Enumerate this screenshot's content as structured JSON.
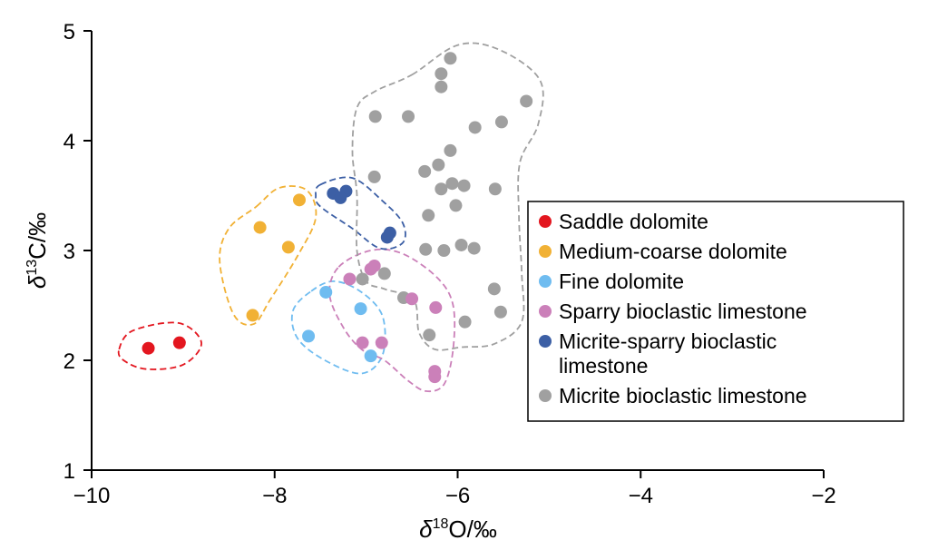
{
  "chart_data": {
    "type": "scatter",
    "xlabel": {
      "prefix": "δ",
      "sup": "18",
      "suffix": "O/‰"
    },
    "ylabel": {
      "prefix": "δ",
      "sup": "13",
      "suffix": "C/‰"
    },
    "xlim": [
      -10,
      -2
    ],
    "ylim": [
      1,
      5
    ],
    "xticks": [
      -10,
      -8,
      -6,
      -4,
      -2
    ],
    "xtick_labels": [
      "−10",
      "−8",
      "−6",
      "−4",
      "−2"
    ],
    "yticks": [
      1,
      2,
      3,
      4,
      5
    ],
    "ytick_labels": [
      "1",
      "2",
      "3",
      "4",
      "5"
    ],
    "grid": false,
    "legend_position": "right",
    "series": [
      {
        "name": "Saddle dolomite",
        "color": "#e3161f",
        "points": [
          [
            -9.38,
            2.11
          ],
          [
            -9.04,
            2.16
          ]
        ]
      },
      {
        "name": "Medium-coarse dolomite",
        "color": "#f1b135",
        "points": [
          [
            -7.73,
            3.46
          ],
          [
            -8.16,
            3.21
          ],
          [
            -7.85,
            3.03
          ],
          [
            -8.24,
            2.41
          ]
        ]
      },
      {
        "name": "Fine dolomite",
        "color": "#6fbcf0",
        "points": [
          [
            -7.44,
            2.62
          ],
          [
            -7.06,
            2.47
          ],
          [
            -7.63,
            2.22
          ],
          [
            -6.95,
            2.04
          ]
        ]
      },
      {
        "name": "Sparry bioclastic limestone",
        "color": "#cb80b9",
        "points": [
          [
            -6.91,
            2.86
          ],
          [
            -6.95,
            2.83
          ],
          [
            -7.18,
            2.74
          ],
          [
            -6.5,
            2.56
          ],
          [
            -6.24,
            2.48
          ],
          [
            -7.04,
            2.16
          ],
          [
            -6.83,
            2.16
          ],
          [
            -6.25,
            1.9
          ],
          [
            -6.25,
            1.85
          ]
        ]
      },
      {
        "name": "Micrite-sparry bioclastic limestone",
        "name_lines": [
          "Micrite-sparry bioclastic",
          "limestone"
        ],
        "color": "#3c5fa5",
        "points": [
          [
            -7.36,
            3.52
          ],
          [
            -7.22,
            3.54
          ],
          [
            -7.28,
            3.48
          ],
          [
            -6.74,
            3.16
          ],
          [
            -6.77,
            3.12
          ]
        ]
      },
      {
        "name": "Micrite bioclastic limestone",
        "color": "#a0a0a0",
        "points": [
          [
            -6.08,
            4.75
          ],
          [
            -6.18,
            4.61
          ],
          [
            -6.18,
            4.49
          ],
          [
            -6.9,
            4.22
          ],
          [
            -6.54,
            4.22
          ],
          [
            -5.25,
            4.36
          ],
          [
            -5.52,
            4.17
          ],
          [
            -5.81,
            4.12
          ],
          [
            -6.08,
            3.91
          ],
          [
            -6.21,
            3.78
          ],
          [
            -6.36,
            3.72
          ],
          [
            -6.91,
            3.67
          ],
          [
            -6.06,
            3.61
          ],
          [
            -5.93,
            3.59
          ],
          [
            -6.18,
            3.56
          ],
          [
            -5.59,
            3.56
          ],
          [
            -6.02,
            3.41
          ],
          [
            -6.32,
            3.32
          ],
          [
            -6.35,
            3.01
          ],
          [
            -6.15,
            3.0
          ],
          [
            -5.96,
            3.05
          ],
          [
            -5.82,
            3.02
          ],
          [
            -6.8,
            2.79
          ],
          [
            -7.04,
            2.74
          ],
          [
            -6.59,
            2.57
          ],
          [
            -5.6,
            2.65
          ],
          [
            -5.53,
            2.44
          ],
          [
            -5.92,
            2.35
          ],
          [
            -6.31,
            2.23
          ]
        ]
      }
    ],
    "hulls": [
      {
        "series": "Saddle dolomite",
        "color": "#e3161f",
        "points": [
          [
            -9.7,
            2.1
          ],
          [
            -9.55,
            2.27
          ],
          [
            -9.05,
            2.34
          ],
          [
            -8.8,
            2.16
          ],
          [
            -9.0,
            1.96
          ],
          [
            -9.4,
            1.92
          ],
          [
            -9.65,
            2.0
          ]
        ]
      },
      {
        "series": "Medium-coarse dolomite",
        "color": "#f1b135",
        "points": [
          [
            -8.2,
            3.4
          ],
          [
            -7.95,
            3.57
          ],
          [
            -7.65,
            3.55
          ],
          [
            -7.55,
            3.3
          ],
          [
            -7.75,
            2.95
          ],
          [
            -8.05,
            2.55
          ],
          [
            -8.23,
            2.33
          ],
          [
            -8.45,
            2.42
          ],
          [
            -8.6,
            2.9
          ],
          [
            -8.5,
            3.2
          ]
        ]
      },
      {
        "series": "Fine dolomite",
        "color": "#6fbcf0",
        "points": [
          [
            -7.6,
            2.63
          ],
          [
            -7.35,
            2.72
          ],
          [
            -7.05,
            2.62
          ],
          [
            -6.82,
            2.4
          ],
          [
            -6.82,
            2.05
          ],
          [
            -7.05,
            1.88
          ],
          [
            -7.45,
            2.0
          ],
          [
            -7.75,
            2.2
          ],
          [
            -7.8,
            2.45
          ]
        ]
      },
      {
        "series": "Sparry bioclastic limestone",
        "color": "#cb80b9",
        "points": [
          [
            -7.3,
            2.85
          ],
          [
            -6.95,
            3.0
          ],
          [
            -6.6,
            2.97
          ],
          [
            -6.22,
            2.75
          ],
          [
            -6.05,
            2.5
          ],
          [
            -6.05,
            2.1
          ],
          [
            -6.15,
            1.78
          ],
          [
            -6.35,
            1.72
          ],
          [
            -6.55,
            1.82
          ],
          [
            -6.8,
            2.0
          ],
          [
            -7.05,
            2.1
          ],
          [
            -7.25,
            2.3
          ],
          [
            -7.4,
            2.6
          ]
        ]
      },
      {
        "series": "Micrite-sparry bioclastic limestone",
        "color": "#3c5fa5",
        "points": [
          [
            -7.5,
            3.6
          ],
          [
            -7.15,
            3.66
          ],
          [
            -6.82,
            3.45
          ],
          [
            -6.6,
            3.25
          ],
          [
            -6.6,
            3.07
          ],
          [
            -6.85,
            3.02
          ],
          [
            -7.15,
            3.2
          ],
          [
            -7.5,
            3.4
          ],
          [
            -7.55,
            3.5
          ]
        ]
      },
      {
        "series": "Micrite bioclastic limestone",
        "color": "#a0a0a0",
        "points": [
          [
            -6.5,
            4.6
          ],
          [
            -6.0,
            4.87
          ],
          [
            -5.55,
            4.83
          ],
          [
            -5.1,
            4.55
          ],
          [
            -5.12,
            4.15
          ],
          [
            -5.32,
            3.8
          ],
          [
            -5.33,
            3.3
          ],
          [
            -5.3,
            2.8
          ],
          [
            -5.3,
            2.35
          ],
          [
            -5.6,
            2.15
          ],
          [
            -5.95,
            2.12
          ],
          [
            -6.25,
            2.1
          ],
          [
            -6.42,
            2.25
          ],
          [
            -6.48,
            2.55
          ],
          [
            -6.8,
            2.65
          ],
          [
            -7.0,
            2.72
          ],
          [
            -7.1,
            3.0
          ],
          [
            -7.1,
            3.5
          ],
          [
            -7.15,
            3.9
          ],
          [
            -7.1,
            4.3
          ],
          [
            -6.9,
            4.45
          ]
        ]
      }
    ]
  }
}
